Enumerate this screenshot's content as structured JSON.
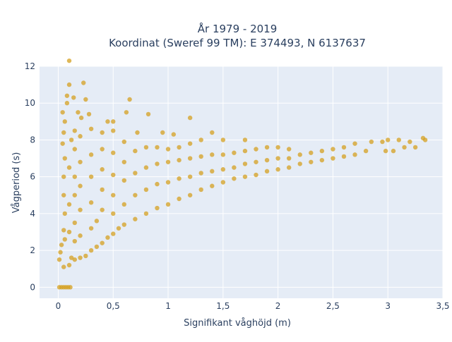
{
  "chart_data": {
    "type": "scatter",
    "title": "År 1979 - 2019",
    "subtitle": "Koordinat (Sweref 99 TM): E 374493, N 6137637",
    "xlabel": "Signifikant våghöjd (m)",
    "ylabel": "Vågperiod (s)",
    "xlim": [
      -0.17,
      3.5
    ],
    "ylim": [
      -0.6,
      12
    ],
    "x_ticks": [
      0,
      0.5,
      1,
      1.5,
      2,
      2.5,
      3,
      3.5
    ],
    "x_tick_labels": [
      "0",
      "0,5",
      "1",
      "1,5",
      "2",
      "2,5",
      "3",
      "3,5"
    ],
    "y_ticks": [
      0,
      2,
      4,
      6,
      8,
      10,
      12
    ],
    "y_tick_labels": [
      "0",
      "2",
      "4",
      "6",
      "8",
      "10",
      "12"
    ],
    "grid": true,
    "legend": "none",
    "marker_color": "#d4a020",
    "background_color": "#e5ecf6",
    "series": [
      {
        "values": [
          [
            0.01,
            0.0
          ],
          [
            0.03,
            0.0
          ],
          [
            0.05,
            0.0
          ],
          [
            0.07,
            0.0
          ],
          [
            0.09,
            0.0
          ],
          [
            0.11,
            0.0
          ],
          [
            0.01,
            1.5
          ],
          [
            0.02,
            1.9
          ],
          [
            0.03,
            2.3
          ],
          [
            0.05,
            1.1
          ],
          [
            0.06,
            2.6
          ],
          [
            0.05,
            3.1
          ],
          [
            0.06,
            4.0
          ],
          [
            0.05,
            5.0
          ],
          [
            0.05,
            6.0
          ],
          [
            0.06,
            7.0
          ],
          [
            0.04,
            7.8
          ],
          [
            0.05,
            8.4
          ],
          [
            0.06,
            9.0
          ],
          [
            0.04,
            9.5
          ],
          [
            0.08,
            10.0
          ],
          [
            0.1,
            1.2
          ],
          [
            0.12,
            1.6
          ],
          [
            0.1,
            3.0
          ],
          [
            0.1,
            4.5
          ],
          [
            0.1,
            6.5
          ],
          [
            0.12,
            8.0
          ],
          [
            0.08,
            10.4
          ],
          [
            0.1,
            11.0
          ],
          [
            0.1,
            12.3
          ],
          [
            0.15,
            1.5
          ],
          [
            0.15,
            2.5
          ],
          [
            0.15,
            3.5
          ],
          [
            0.15,
            5.0
          ],
          [
            0.15,
            6.0
          ],
          [
            0.15,
            7.5
          ],
          [
            0.15,
            8.5
          ],
          [
            0.18,
            9.5
          ],
          [
            0.14,
            10.3
          ],
          [
            0.2,
            1.6
          ],
          [
            0.2,
            2.8
          ],
          [
            0.2,
            4.2
          ],
          [
            0.2,
            5.5
          ],
          [
            0.2,
            6.8
          ],
          [
            0.2,
            8.2
          ],
          [
            0.21,
            9.2
          ],
          [
            0.23,
            11.1
          ],
          [
            0.25,
            10.2
          ],
          [
            0.25,
            1.7
          ],
          [
            0.3,
            2.0
          ],
          [
            0.3,
            3.2
          ],
          [
            0.3,
            4.6
          ],
          [
            0.3,
            6.0
          ],
          [
            0.3,
            7.2
          ],
          [
            0.3,
            8.6
          ],
          [
            0.28,
            9.4
          ],
          [
            0.35,
            2.2
          ],
          [
            0.35,
            3.6
          ],
          [
            0.4,
            2.4
          ],
          [
            0.4,
            4.2
          ],
          [
            0.4,
            5.3
          ],
          [
            0.4,
            6.4
          ],
          [
            0.4,
            7.5
          ],
          [
            0.4,
            8.4
          ],
          [
            0.45,
            2.7
          ],
          [
            0.45,
            9.0
          ],
          [
            0.5,
            2.9
          ],
          [
            0.5,
            4.0
          ],
          [
            0.5,
            5.0
          ],
          [
            0.5,
            6.1
          ],
          [
            0.5,
            7.3
          ],
          [
            0.5,
            8.5
          ],
          [
            0.5,
            9.0
          ],
          [
            0.55,
            3.2
          ],
          [
            0.6,
            3.4
          ],
          [
            0.6,
            4.5
          ],
          [
            0.6,
            5.8
          ],
          [
            0.6,
            6.8
          ],
          [
            0.6,
            7.9
          ],
          [
            0.62,
            9.5
          ],
          [
            0.65,
            10.2
          ],
          [
            0.7,
            3.7
          ],
          [
            0.7,
            5.0
          ],
          [
            0.7,
            6.2
          ],
          [
            0.7,
            7.4
          ],
          [
            0.72,
            8.4
          ],
          [
            0.8,
            4.0
          ],
          [
            0.8,
            5.3
          ],
          [
            0.8,
            6.5
          ],
          [
            0.8,
            7.6
          ],
          [
            0.82,
            9.4
          ],
          [
            0.9,
            4.3
          ],
          [
            0.9,
            5.6
          ],
          [
            0.9,
            6.7
          ],
          [
            0.9,
            7.6
          ],
          [
            0.95,
            8.4
          ],
          [
            1.0,
            4.5
          ],
          [
            1.0,
            5.7
          ],
          [
            1.0,
            6.8
          ],
          [
            1.0,
            7.5
          ],
          [
            1.05,
            8.3
          ],
          [
            1.1,
            4.8
          ],
          [
            1.1,
            5.9
          ],
          [
            1.1,
            6.9
          ],
          [
            1.1,
            7.6
          ],
          [
            1.2,
            5.0
          ],
          [
            1.2,
            6.0
          ],
          [
            1.2,
            7.0
          ],
          [
            1.2,
            7.8
          ],
          [
            1.2,
            9.2
          ],
          [
            1.3,
            5.3
          ],
          [
            1.3,
            6.2
          ],
          [
            1.3,
            7.1
          ],
          [
            1.3,
            8.0
          ],
          [
            1.4,
            5.5
          ],
          [
            1.4,
            6.3
          ],
          [
            1.4,
            7.2
          ],
          [
            1.4,
            8.4
          ],
          [
            1.5,
            5.7
          ],
          [
            1.5,
            6.4
          ],
          [
            1.5,
            7.2
          ],
          [
            1.5,
            8.0
          ],
          [
            1.6,
            5.9
          ],
          [
            1.6,
            6.5
          ],
          [
            1.6,
            7.3
          ],
          [
            1.7,
            6.0
          ],
          [
            1.7,
            6.7
          ],
          [
            1.7,
            7.4
          ],
          [
            1.7,
            8.0
          ],
          [
            1.8,
            6.1
          ],
          [
            1.8,
            6.8
          ],
          [
            1.8,
            7.5
          ],
          [
            1.9,
            6.3
          ],
          [
            1.9,
            6.9
          ],
          [
            1.9,
            7.6
          ],
          [
            2.0,
            6.4
          ],
          [
            2.0,
            7.0
          ],
          [
            2.0,
            7.6
          ],
          [
            2.1,
            6.5
          ],
          [
            2.1,
            7.0
          ],
          [
            2.1,
            7.5
          ],
          [
            2.2,
            6.7
          ],
          [
            2.2,
            7.2
          ],
          [
            2.3,
            6.8
          ],
          [
            2.3,
            7.3
          ],
          [
            2.4,
            6.9
          ],
          [
            2.4,
            7.4
          ],
          [
            2.5,
            7.0
          ],
          [
            2.5,
            7.5
          ],
          [
            2.6,
            7.1
          ],
          [
            2.6,
            7.6
          ],
          [
            2.7,
            7.2
          ],
          [
            2.7,
            7.8
          ],
          [
            2.8,
            7.4
          ],
          [
            2.85,
            7.9
          ],
          [
            2.95,
            7.9
          ],
          [
            2.98,
            7.4
          ],
          [
            3.0,
            8.0
          ],
          [
            3.05,
            7.4
          ],
          [
            3.1,
            8.0
          ],
          [
            3.15,
            7.6
          ],
          [
            3.2,
            7.9
          ],
          [
            3.25,
            7.6
          ],
          [
            3.32,
            8.1
          ],
          [
            3.34,
            8.0
          ]
        ]
      }
    ]
  }
}
